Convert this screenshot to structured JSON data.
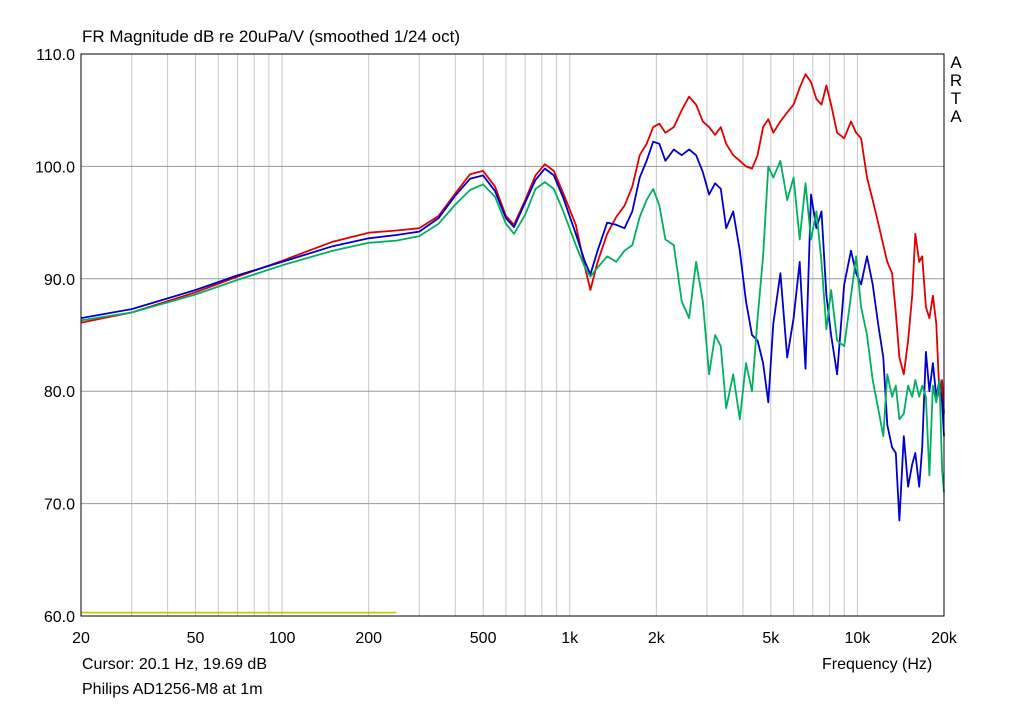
{
  "chart_data": {
    "type": "line",
    "title": "FR Magnitude dB re 20uPa/V (smoothed 1/24 oct)",
    "brand": [
      "A",
      "R",
      "T",
      "A"
    ],
    "xlabel": "Frequency (Hz)",
    "ylabel": "",
    "x_scale": "log",
    "xlim": [
      20,
      20000
    ],
    "ylim": [
      60,
      110
    ],
    "grid": true,
    "x_tick_labels": [
      {
        "value": 20,
        "label": "20"
      },
      {
        "value": 50,
        "label": "50"
      },
      {
        "value": 100,
        "label": "100"
      },
      {
        "value": 200,
        "label": "200"
      },
      {
        "value": 500,
        "label": "500"
      },
      {
        "value": 1000,
        "label": "1k"
      },
      {
        "value": 2000,
        "label": "2k"
      },
      {
        "value": 5000,
        "label": "5k"
      },
      {
        "value": 10000,
        "label": "10k"
      },
      {
        "value": 20000,
        "label": "20k"
      }
    ],
    "y_tick_labels": [
      {
        "value": 110,
        "label": "110.0"
      },
      {
        "value": 100,
        "label": "100.0"
      },
      {
        "value": 90,
        "label": "90.0"
      },
      {
        "value": 80,
        "label": "80.0"
      },
      {
        "value": 70,
        "label": "70.0"
      },
      {
        "value": 60,
        "label": "60.0"
      }
    ],
    "series": [
      {
        "color": "#e00000",
        "points": [
          [
            20,
            86.1
          ],
          [
            30,
            87.0
          ],
          [
            50,
            88.8
          ],
          [
            70,
            90.2
          ],
          [
            100,
            91.6
          ],
          [
            150,
            93.3
          ],
          [
            200,
            94.1
          ],
          [
            250,
            94.3
          ],
          [
            300,
            94.5
          ],
          [
            350,
            95.6
          ],
          [
            400,
            97.6
          ],
          [
            450,
            99.3
          ],
          [
            500,
            99.6
          ],
          [
            550,
            98.2
          ],
          [
            600,
            95.6
          ],
          [
            640,
            94.8
          ],
          [
            700,
            97.0
          ],
          [
            760,
            99.2
          ],
          [
            820,
            100.2
          ],
          [
            880,
            99.6
          ],
          [
            950,
            97.6
          ],
          [
            1050,
            94.8
          ],
          [
            1130,
            91.0
          ],
          [
            1180,
            89.0
          ],
          [
            1250,
            91.5
          ],
          [
            1350,
            94.0
          ],
          [
            1450,
            95.5
          ],
          [
            1550,
            96.5
          ],
          [
            1650,
            98.2
          ],
          [
            1750,
            101.0
          ],
          [
            1850,
            102.0
          ],
          [
            1950,
            103.5
          ],
          [
            2050,
            103.8
          ],
          [
            2150,
            103.0
          ],
          [
            2300,
            103.5
          ],
          [
            2450,
            105.0
          ],
          [
            2600,
            106.2
          ],
          [
            2750,
            105.5
          ],
          [
            2900,
            104.0
          ],
          [
            3050,
            103.5
          ],
          [
            3200,
            102.8
          ],
          [
            3350,
            103.5
          ],
          [
            3500,
            102.0
          ],
          [
            3700,
            101.0
          ],
          [
            3900,
            100.5
          ],
          [
            4100,
            100.0
          ],
          [
            4300,
            99.8
          ],
          [
            4500,
            101.0
          ],
          [
            4700,
            103.5
          ],
          [
            4900,
            104.2
          ],
          [
            5100,
            103.0
          ],
          [
            5400,
            104.0
          ],
          [
            5700,
            104.8
          ],
          [
            6000,
            105.5
          ],
          [
            6300,
            107.0
          ],
          [
            6600,
            108.2
          ],
          [
            6900,
            107.5
          ],
          [
            7200,
            106.0
          ],
          [
            7500,
            105.5
          ],
          [
            7800,
            107.2
          ],
          [
            8100,
            105.5
          ],
          [
            8500,
            103.0
          ],
          [
            9000,
            102.5
          ],
          [
            9500,
            104.0
          ],
          [
            9900,
            103.0
          ],
          [
            10300,
            102.5
          ],
          [
            10800,
            99.0
          ],
          [
            11300,
            97.0
          ],
          [
            11800,
            95.0
          ],
          [
            12300,
            93.0
          ],
          [
            12700,
            91.5
          ],
          [
            13200,
            90.5
          ],
          [
            13600,
            87.0
          ],
          [
            14000,
            83.0
          ],
          [
            14500,
            81.5
          ],
          [
            15000,
            84.5
          ],
          [
            15500,
            88.5
          ],
          [
            15900,
            94.0
          ],
          [
            16400,
            91.5
          ],
          [
            16800,
            92.0
          ],
          [
            17300,
            87.5
          ],
          [
            17800,
            86.5
          ],
          [
            18300,
            88.5
          ],
          [
            18800,
            86.0
          ],
          [
            19300,
            79.5
          ],
          [
            19700,
            81.0
          ],
          [
            20000,
            78.0
          ]
        ]
      },
      {
        "color": "#0000cc",
        "points": [
          [
            20,
            86.5
          ],
          [
            30,
            87.3
          ],
          [
            50,
            89.0
          ],
          [
            70,
            90.3
          ],
          [
            100,
            91.5
          ],
          [
            150,
            92.9
          ],
          [
            200,
            93.6
          ],
          [
            250,
            93.9
          ],
          [
            300,
            94.2
          ],
          [
            350,
            95.4
          ],
          [
            400,
            97.4
          ],
          [
            450,
            98.9
          ],
          [
            500,
            99.2
          ],
          [
            550,
            97.8
          ],
          [
            600,
            95.4
          ],
          [
            640,
            94.6
          ],
          [
            700,
            96.8
          ],
          [
            760,
            98.8
          ],
          [
            820,
            99.8
          ],
          [
            880,
            99.2
          ],
          [
            950,
            97.2
          ],
          [
            1050,
            94.0
          ],
          [
            1130,
            91.5
          ],
          [
            1180,
            90.4
          ],
          [
            1250,
            92.5
          ],
          [
            1350,
            95.0
          ],
          [
            1450,
            94.8
          ],
          [
            1550,
            94.5
          ],
          [
            1650,
            96.0
          ],
          [
            1750,
            99.0
          ],
          [
            1850,
            100.5
          ],
          [
            1950,
            102.2
          ],
          [
            2050,
            102.0
          ],
          [
            2150,
            100.5
          ],
          [
            2300,
            101.5
          ],
          [
            2450,
            101.0
          ],
          [
            2600,
            101.5
          ],
          [
            2750,
            101.0
          ],
          [
            2900,
            99.5
          ],
          [
            3050,
            97.5
          ],
          [
            3200,
            98.5
          ],
          [
            3350,
            98.0
          ],
          [
            3500,
            94.5
          ],
          [
            3700,
            96.0
          ],
          [
            3900,
            92.5
          ],
          [
            4100,
            88.0
          ],
          [
            4300,
            85.0
          ],
          [
            4500,
            84.5
          ],
          [
            4700,
            82.5
          ],
          [
            4900,
            79.0
          ],
          [
            5100,
            86.0
          ],
          [
            5400,
            90.5
          ],
          [
            5700,
            83.0
          ],
          [
            6000,
            86.5
          ],
          [
            6300,
            91.5
          ],
          [
            6600,
            82.0
          ],
          [
            6900,
            97.5
          ],
          [
            7200,
            94.5
          ],
          [
            7500,
            96.0
          ],
          [
            7800,
            88.5
          ],
          [
            8100,
            85.0
          ],
          [
            8500,
            81.5
          ],
          [
            9000,
            89.5
          ],
          [
            9500,
            92.5
          ],
          [
            9900,
            90.5
          ],
          [
            10300,
            89.5
          ],
          [
            10800,
            92.0
          ],
          [
            11300,
            89.5
          ],
          [
            11800,
            86.0
          ],
          [
            12300,
            83.0
          ],
          [
            12700,
            77.0
          ],
          [
            13200,
            75.0
          ],
          [
            13600,
            74.5
          ],
          [
            14000,
            68.5
          ],
          [
            14500,
            76.0
          ],
          [
            15000,
            71.5
          ],
          [
            15500,
            73.5
          ],
          [
            15900,
            74.5
          ],
          [
            16400,
            71.5
          ],
          [
            16800,
            75.0
          ],
          [
            17300,
            83.5
          ],
          [
            17800,
            80.0
          ],
          [
            18300,
            82.5
          ],
          [
            18800,
            79.5
          ],
          [
            19300,
            81.0
          ],
          [
            19700,
            79.0
          ],
          [
            20000,
            76.0
          ]
        ]
      },
      {
        "color": "#00b060",
        "points": [
          [
            20,
            86.3
          ],
          [
            30,
            87.0
          ],
          [
            50,
            88.6
          ],
          [
            70,
            89.9
          ],
          [
            100,
            91.2
          ],
          [
            150,
            92.5
          ],
          [
            200,
            93.2
          ],
          [
            250,
            93.4
          ],
          [
            300,
            93.8
          ],
          [
            350,
            94.9
          ],
          [
            400,
            96.6
          ],
          [
            450,
            97.9
          ],
          [
            500,
            98.4
          ],
          [
            550,
            97.3
          ],
          [
            600,
            94.9
          ],
          [
            640,
            94.0
          ],
          [
            700,
            95.7
          ],
          [
            760,
            98.0
          ],
          [
            820,
            98.6
          ],
          [
            880,
            98.0
          ],
          [
            950,
            96.0
          ],
          [
            1050,
            93.0
          ],
          [
            1130,
            91.0
          ],
          [
            1180,
            90.2
          ],
          [
            1250,
            91.0
          ],
          [
            1350,
            92.0
          ],
          [
            1450,
            91.5
          ],
          [
            1550,
            92.5
          ],
          [
            1650,
            93.0
          ],
          [
            1750,
            95.5
          ],
          [
            1850,
            97.0
          ],
          [
            1950,
            98.0
          ],
          [
            2050,
            96.5
          ],
          [
            2150,
            93.5
          ],
          [
            2300,
            93.0
          ],
          [
            2450,
            88.0
          ],
          [
            2600,
            86.5
          ],
          [
            2750,
            91.5
          ],
          [
            2900,
            88.0
          ],
          [
            3050,
            81.5
          ],
          [
            3200,
            85.0
          ],
          [
            3350,
            84.0
          ],
          [
            3500,
            78.5
          ],
          [
            3700,
            81.5
          ],
          [
            3900,
            77.5
          ],
          [
            4100,
            82.5
          ],
          [
            4300,
            80.0
          ],
          [
            4500,
            86.5
          ],
          [
            4700,
            92.0
          ],
          [
            4900,
            100.0
          ],
          [
            5100,
            99.0
          ],
          [
            5400,
            100.5
          ],
          [
            5700,
            97.0
          ],
          [
            6000,
            99.0
          ],
          [
            6300,
            93.5
          ],
          [
            6600,
            98.5
          ],
          [
            6900,
            93.5
          ],
          [
            7200,
            96.0
          ],
          [
            7500,
            91.5
          ],
          [
            7800,
            85.5
          ],
          [
            8100,
            89.0
          ],
          [
            8500,
            84.5
          ],
          [
            9000,
            84.0
          ],
          [
            9500,
            88.5
          ],
          [
            9900,
            92.0
          ],
          [
            10300,
            87.5
          ],
          [
            10800,
            85.0
          ],
          [
            11300,
            81.0
          ],
          [
            11800,
            78.5
          ],
          [
            12300,
            76.0
          ],
          [
            12700,
            81.5
          ],
          [
            13200,
            79.5
          ],
          [
            13600,
            80.5
          ],
          [
            14000,
            77.5
          ],
          [
            14500,
            78.0
          ],
          [
            15000,
            80.5
          ],
          [
            15500,
            79.5
          ],
          [
            15900,
            81.0
          ],
          [
            16400,
            79.5
          ],
          [
            16800,
            80.5
          ],
          [
            17300,
            79.5
          ],
          [
            17800,
            72.5
          ],
          [
            18300,
            80.5
          ],
          [
            18800,
            79.0
          ],
          [
            19300,
            81.0
          ],
          [
            19700,
            73.0
          ],
          [
            20000,
            71.0
          ]
        ]
      },
      {
        "color": "#c8c800",
        "points": [
          [
            20,
            60.3
          ],
          [
            250,
            60.3
          ]
        ]
      }
    ]
  },
  "cursor_text": "Cursor: 20.1 Hz, 19.69 dB",
  "footer_text": "Philips AD1256-M8 at 1m"
}
